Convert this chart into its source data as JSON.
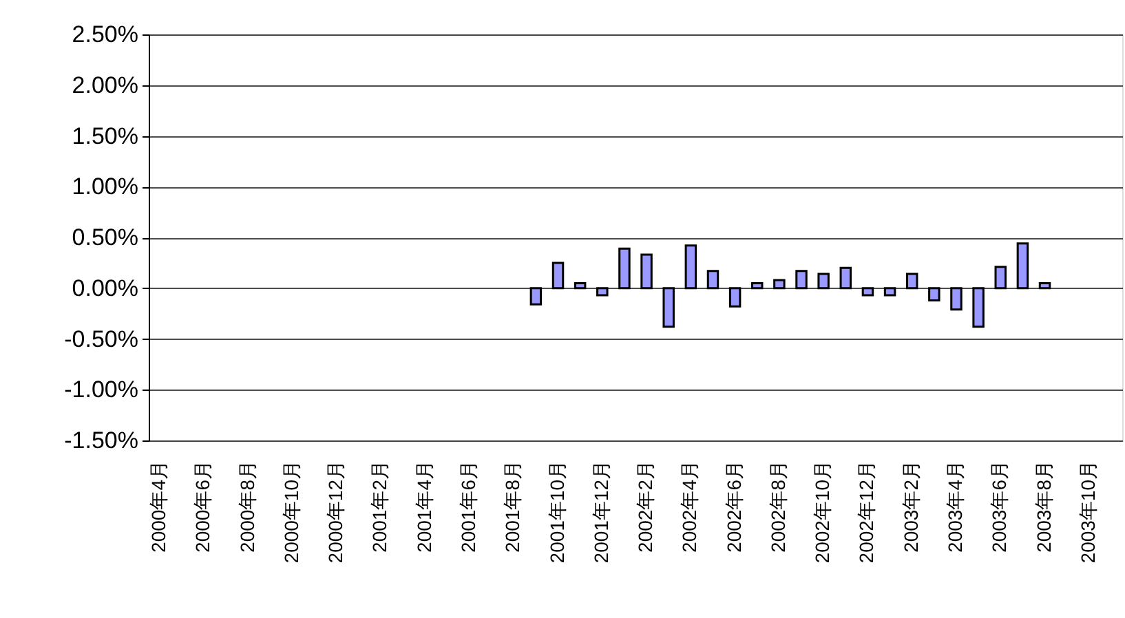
{
  "chart_data": {
    "type": "bar",
    "categories": [
      "2000年4月",
      null,
      "2000年6月",
      null,
      "2000年8月",
      null,
      "2000年10月",
      null,
      "2000年12月",
      null,
      "2001年2月",
      null,
      "2001年4月",
      null,
      "2001年6月",
      null,
      "2001年8月",
      null,
      "2001年10月",
      null,
      "2001年12月",
      null,
      "2002年2月",
      null,
      "2002年4月",
      null,
      "2002年6月",
      null,
      "2002年8月",
      null,
      "2002年10月",
      null,
      "2002年12月",
      null,
      "2003年2月",
      null,
      "2003年4月",
      null,
      "2003年6月",
      null,
      "2003年8月",
      null,
      "2003年10月",
      null
    ],
    "values": [
      null,
      null,
      null,
      null,
      null,
      null,
      null,
      null,
      null,
      null,
      null,
      null,
      null,
      null,
      null,
      null,
      null,
      -0.16,
      0.25,
      0.05,
      -0.07,
      0.39,
      0.33,
      -0.38,
      0.42,
      0.17,
      -0.18,
      0.05,
      0.08,
      0.17,
      0.14,
      0.2,
      -0.07,
      -0.07,
      0.14,
      -0.12,
      -0.21,
      -0.38,
      0.21,
      0.44,
      0.05,
      null,
      null,
      null
    ],
    "color": "#9999ff",
    "ylim": [
      -1.5,
      2.5
    ],
    "yticks": [
      {
        "value": -1.5,
        "label": "-1.50%"
      },
      {
        "value": -1.0,
        "label": "-1.00%"
      },
      {
        "value": -0.5,
        "label": "-0.50%"
      },
      {
        "value": 0,
        "label": "0.00%"
      },
      {
        "value": 0.5,
        "label": "0.50%"
      },
      {
        "value": 1.0,
        "label": "1.00%"
      },
      {
        "value": 1.5,
        "label": "1.50%"
      },
      {
        "value": 2.0,
        "label": "2.00%"
      },
      {
        "value": 2.5,
        "label": "2.50%"
      }
    ],
    "grid": "y"
  }
}
